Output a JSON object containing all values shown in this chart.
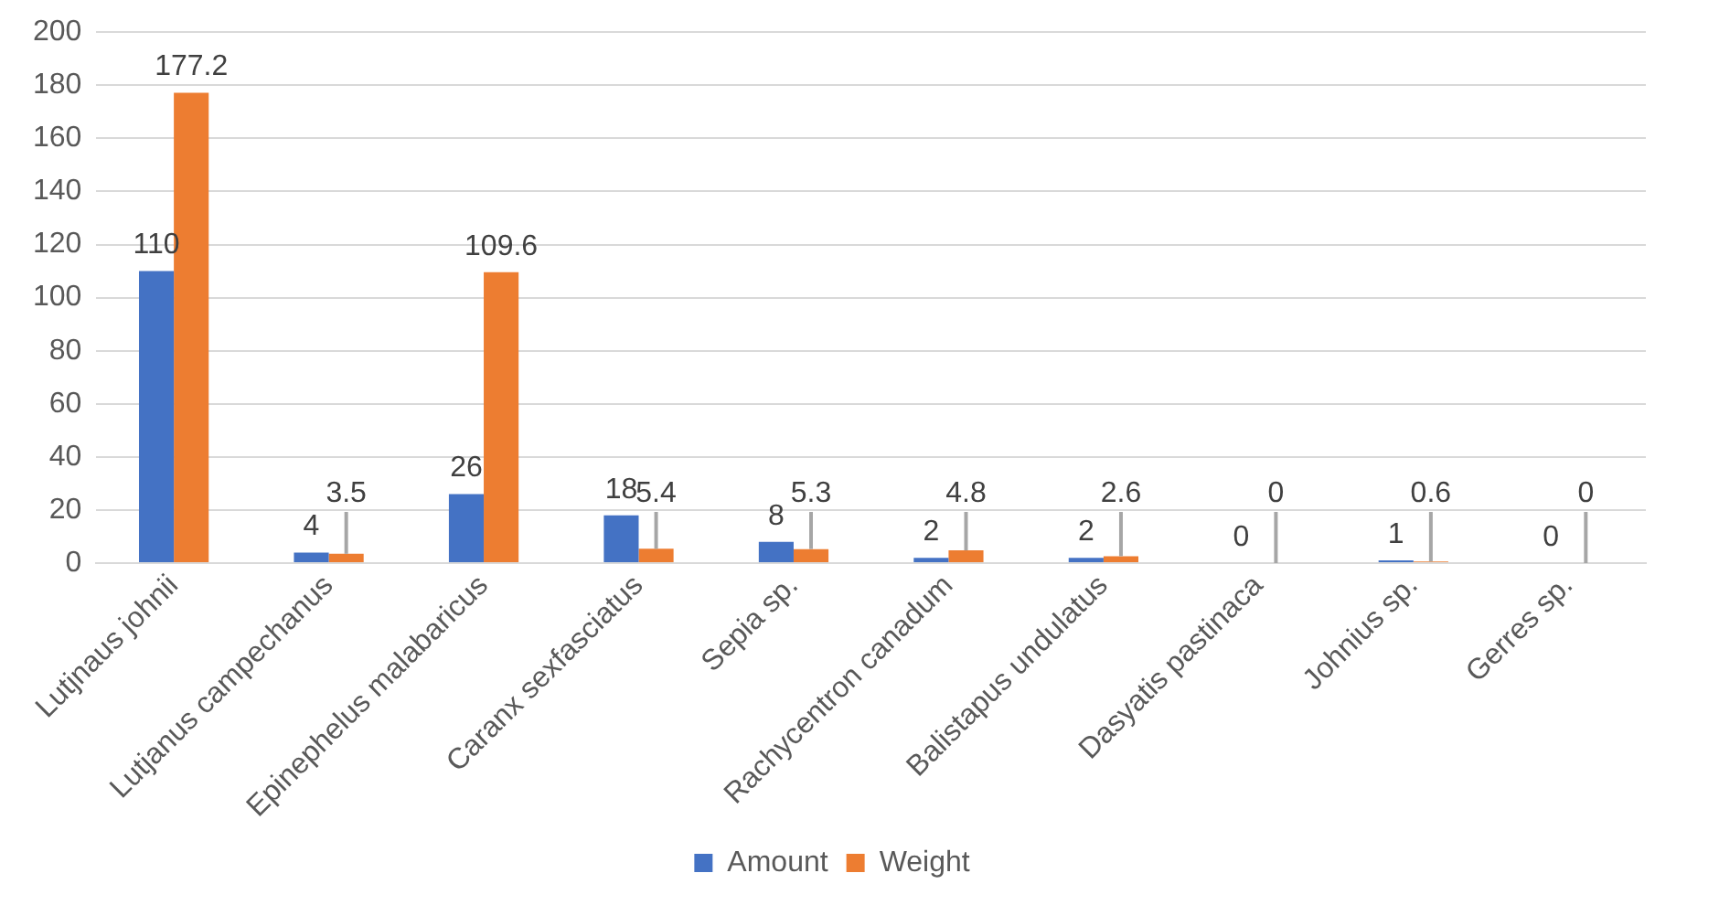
{
  "chart_data": {
    "type": "bar",
    "categories": [
      "Lutjnaus johnii",
      "Lutjanus campechanus",
      "Epinephelus malabaricus",
      "Caranx sexfasciatus",
      "Sepia sp.",
      "Rachycentron canadum",
      "Balistapus undulatus",
      "Dasyatis pastinaca",
      "Johnius sp.",
      "Gerres sp."
    ],
    "series": [
      {
        "name": "Amount",
        "color": "#4472c4",
        "values": [
          110,
          4,
          26,
          18,
          8,
          2,
          2,
          0,
          1,
          0
        ]
      },
      {
        "name": "Weight",
        "color": "#ed7d31",
        "values": [
          177.2,
          3.5,
          109.6,
          5.4,
          5.3,
          4.8,
          2.6,
          0,
          0.6,
          0
        ]
      }
    ],
    "ylim": [
      0,
      200
    ],
    "yticks": [
      0,
      20,
      40,
      60,
      80,
      100,
      120,
      140,
      160,
      180,
      200
    ],
    "grid": "y",
    "legend": "bottom",
    "data_labels": true
  }
}
